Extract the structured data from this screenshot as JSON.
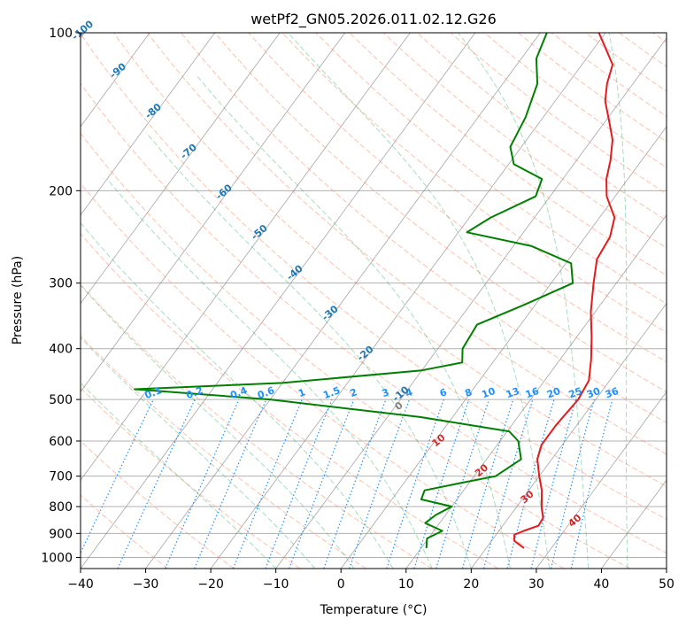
{
  "chart_data": {
    "type": "line",
    "title": "wetPf2_GN05.2026.011.02.12.G26",
    "xlabel": "Temperature (°C)",
    "ylabel": "Pressure (hPa)",
    "xlim": [
      -40,
      50
    ],
    "ylim": [
      1050,
      100
    ],
    "y_scale": "log",
    "x_ticks": [
      "−40",
      "−30",
      "−20",
      "−10",
      "0",
      "10",
      "20",
      "30",
      "40",
      "50"
    ],
    "y_ticks": [
      "100",
      "200",
      "300",
      "400",
      "500",
      "600",
      "700",
      "800",
      "900",
      "1000"
    ],
    "grid": true,
    "skew": "skewed isotherms (skew-T log-p diagram)",
    "series": [
      {
        "role": "temperature",
        "color": "#e41a1c",
        "points": [
          {
            "p": 960,
            "t": 25.8
          },
          {
            "p": 930,
            "t": 23.5
          },
          {
            "p": 905,
            "t": 22.8
          },
          {
            "p": 890,
            "t": 23.8
          },
          {
            "p": 870,
            "t": 25.5
          },
          {
            "p": 840,
            "t": 25.3
          },
          {
            "p": 800,
            "t": 23.8
          },
          {
            "p": 745,
            "t": 22.0
          },
          {
            "p": 700,
            "t": 20.0
          },
          {
            "p": 650,
            "t": 17.8
          },
          {
            "p": 610,
            "t": 16.8
          },
          {
            "p": 560,
            "t": 16.8
          },
          {
            "p": 500,
            "t": 17.3
          },
          {
            "p": 460,
            "t": 16.8
          },
          {
            "p": 420,
            "t": 14.8
          },
          {
            "p": 380,
            "t": 12.3
          },
          {
            "p": 340,
            "t": 9.3
          },
          {
            "p": 300,
            "t": 6.5
          },
          {
            "p": 270,
            "t": 4.3
          },
          {
            "p": 245,
            "t": 3.8
          },
          {
            "p": 225,
            "t": 2.3
          },
          {
            "p": 205,
            "t": -1.3
          },
          {
            "p": 190,
            "t": -3.3
          },
          {
            "p": 175,
            "t": -4.8
          },
          {
            "p": 160,
            "t": -6.8
          },
          {
            "p": 148,
            "t": -9.3
          },
          {
            "p": 135,
            "t": -12.3
          },
          {
            "p": 125,
            "t": -14.0
          },
          {
            "p": 115,
            "t": -15.3
          },
          {
            "p": 105,
            "t": -19.0
          },
          {
            "p": 100,
            "t": -21.0
          }
        ]
      },
      {
        "role": "dewpoint",
        "color": "#008000",
        "points": [
          {
            "p": 960,
            "t": 10.8
          },
          {
            "p": 920,
            "t": 9.8
          },
          {
            "p": 890,
            "t": 11.3
          },
          {
            "p": 860,
            "t": 7.8
          },
          {
            "p": 830,
            "t": 8.5
          },
          {
            "p": 800,
            "t": 10.0
          },
          {
            "p": 775,
            "t": 4.5
          },
          {
            "p": 745,
            "t": 4.0
          },
          {
            "p": 720,
            "t": 9.0
          },
          {
            "p": 700,
            "t": 13.3
          },
          {
            "p": 650,
            "t": 15.3
          },
          {
            "p": 600,
            "t": 12.8
          },
          {
            "p": 575,
            "t": 10.3
          },
          {
            "p": 540,
            "t": -5.0
          },
          {
            "p": 500,
            "t": -30.0
          },
          {
            "p": 478,
            "t": -52.0
          },
          {
            "p": 465,
            "t": -30.0
          },
          {
            "p": 440,
            "t": -10.0
          },
          {
            "p": 425,
            "t": -4.7
          },
          {
            "p": 400,
            "t": -6.2
          },
          {
            "p": 360,
            "t": -6.7
          },
          {
            "p": 330,
            "t": -1.7
          },
          {
            "p": 300,
            "t": 3.3
          },
          {
            "p": 275,
            "t": 0.8
          },
          {
            "p": 255,
            "t": -7.2
          },
          {
            "p": 240,
            "t": -18.7
          },
          {
            "p": 225,
            "t": -16.7
          },
          {
            "p": 205,
            "t": -12.2
          },
          {
            "p": 190,
            "t": -13.2
          },
          {
            "p": 178,
            "t": -19.2
          },
          {
            "p": 165,
            "t": -21.7
          },
          {
            "p": 145,
            "t": -22.7
          },
          {
            "p": 125,
            "t": -24.7
          },
          {
            "p": 112,
            "t": -27.7
          },
          {
            "p": 100,
            "t": -29.0
          }
        ]
      }
    ],
    "dry_adiabat_labels": [
      "-100",
      "-90",
      "-80",
      "-70",
      "-60",
      "-50",
      "-40",
      "-30",
      "-20",
      "-10",
      "0",
      "10",
      "20",
      "30",
      "40"
    ],
    "mixing_ratio_labels": [
      "0.1",
      "0.2",
      "0.4",
      "0.6",
      "1",
      "1.5",
      "2",
      "3",
      "4",
      "6",
      "8",
      "10",
      "13",
      "16",
      "20",
      "25",
      "30",
      "36"
    ]
  },
  "colors": {
    "temperature": "#e41a1c",
    "dewpoint": "#008000",
    "dry_adiabat": "#ff8c69",
    "moist_adiabat": "#3cb371",
    "mixing_ratio": "#1e90ff",
    "isotherm": "#808080",
    "label_cold": "#1f77b4",
    "label_warm": "#d62728",
    "label_zero": "#808080"
  }
}
